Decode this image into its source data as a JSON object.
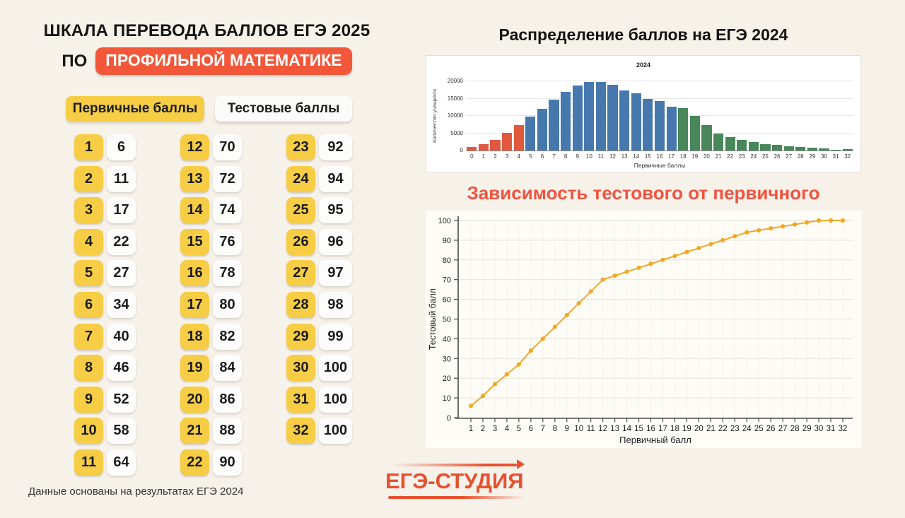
{
  "page": {
    "background": "#F6F1E9",
    "accent_orange": "#F2573A",
    "accent_yellow": "#F6CD45"
  },
  "left": {
    "title_line1": "ШКАЛА ПЕРЕВОДА БАЛЛОВ ЕГЭ 2025",
    "title_prefix": "ПО",
    "title_badge": "ПРОФИЛЬНОЙ МАТЕМАТИКЕ",
    "primary_header": "Первичные баллы",
    "test_header": "Тестовые баллы",
    "footnote": "Данные основаны на результатах ЕГЭ 2024",
    "column_sizes": [
      11,
      11,
      10
    ],
    "score_pairs": [
      [
        1,
        6
      ],
      [
        2,
        11
      ],
      [
        3,
        17
      ],
      [
        4,
        22
      ],
      [
        5,
        27
      ],
      [
        6,
        34
      ],
      [
        7,
        40
      ],
      [
        8,
        46
      ],
      [
        9,
        52
      ],
      [
        10,
        58
      ],
      [
        11,
        64
      ],
      [
        12,
        70
      ],
      [
        13,
        72
      ],
      [
        14,
        74
      ],
      [
        15,
        76
      ],
      [
        16,
        78
      ],
      [
        17,
        80
      ],
      [
        18,
        82
      ],
      [
        19,
        84
      ],
      [
        20,
        86
      ],
      [
        21,
        88
      ],
      [
        22,
        90
      ],
      [
        23,
        92
      ],
      [
        24,
        94
      ],
      [
        25,
        95
      ],
      [
        26,
        96
      ],
      [
        27,
        97
      ],
      [
        28,
        98
      ],
      [
        29,
        99
      ],
      [
        30,
        100
      ],
      [
        31,
        100
      ],
      [
        32,
        100
      ]
    ]
  },
  "logo": {
    "text": "ЕГЭ-СТУДИЯ",
    "color": "#E8512F"
  },
  "chart_data": [
    {
      "type": "table",
      "title": "ШКАЛА ПЕРЕВОДА БАЛЛОВ ЕГЭ 2025 ПО ПРОФИЛЬНОЙ МАТЕМАТИКЕ",
      "columns": [
        "Первичные баллы",
        "Тестовые баллы"
      ],
      "rows": [
        [
          1,
          6
        ],
        [
          2,
          11
        ],
        [
          3,
          17
        ],
        [
          4,
          22
        ],
        [
          5,
          27
        ],
        [
          6,
          34
        ],
        [
          7,
          40
        ],
        [
          8,
          46
        ],
        [
          9,
          52
        ],
        [
          10,
          58
        ],
        [
          11,
          64
        ],
        [
          12,
          70
        ],
        [
          13,
          72
        ],
        [
          14,
          74
        ],
        [
          15,
          76
        ],
        [
          16,
          78
        ],
        [
          17,
          80
        ],
        [
          18,
          82
        ],
        [
          19,
          84
        ],
        [
          20,
          86
        ],
        [
          21,
          88
        ],
        [
          22,
          90
        ],
        [
          23,
          92
        ],
        [
          24,
          94
        ],
        [
          25,
          95
        ],
        [
          26,
          96
        ],
        [
          27,
          97
        ],
        [
          28,
          98
        ],
        [
          29,
          99
        ],
        [
          30,
          100
        ],
        [
          31,
          100
        ],
        [
          32,
          100
        ]
      ]
    },
    {
      "type": "bar",
      "title": "Распределение баллов на ЕГЭ 2024",
      "panel_title": "2024",
      "xlabel": "Первичные баллы",
      "ylabel": "Количество учащихся",
      "ylim": [
        0,
        20000
      ],
      "yticks": [
        0,
        5000,
        10000,
        15000,
        20000
      ],
      "grid": true,
      "legend": "none",
      "categories": [
        0,
        1,
        2,
        3,
        4,
        5,
        6,
        7,
        8,
        9,
        10,
        11,
        12,
        13,
        14,
        15,
        16,
        17,
        18,
        19,
        20,
        21,
        22,
        23,
        24,
        25,
        26,
        27,
        28,
        29,
        30,
        31,
        32
      ],
      "values": [
        1000,
        1800,
        3100,
        5100,
        7300,
        9700,
        12000,
        14600,
        16900,
        18800,
        19700,
        19900,
        18900,
        17400,
        16600,
        15000,
        14300,
        12600,
        12200,
        10000,
        7400,
        4900,
        3900,
        3100,
        2500,
        1900,
        1600,
        1300,
        1000,
        900,
        600,
        200,
        400
      ],
      "segments": [
        {
          "from": 0,
          "to": 4,
          "color": "#E0593F"
        },
        {
          "from": 5,
          "to": 17,
          "color": "#4678AE"
        },
        {
          "from": 18,
          "to": 32,
          "color": "#478759"
        }
      ]
    },
    {
      "type": "line",
      "title": "Зависимость тестового от первичного",
      "title_color": "#F2533F",
      "xlabel": "Первичный балл",
      "ylabel": "Тестовый балл",
      "xlim": [
        1,
        32
      ],
      "ylim": [
        0,
        100
      ],
      "yticks": [
        0,
        10,
        20,
        30,
        40,
        50,
        60,
        70,
        80,
        90,
        100
      ],
      "grid": true,
      "line_color": "#F0A827",
      "marker": "circle",
      "x": [
        1,
        2,
        3,
        4,
        5,
        6,
        7,
        8,
        9,
        10,
        11,
        12,
        13,
        14,
        15,
        16,
        17,
        18,
        19,
        20,
        21,
        22,
        23,
        24,
        25,
        26,
        27,
        28,
        29,
        30,
        31,
        32
      ],
      "y": [
        6,
        11,
        17,
        22,
        27,
        34,
        40,
        46,
        52,
        58,
        64,
        70,
        72,
        74,
        76,
        78,
        80,
        82,
        84,
        86,
        88,
        90,
        92,
        94,
        95,
        96,
        97,
        98,
        99,
        100,
        100,
        100
      ]
    }
  ]
}
